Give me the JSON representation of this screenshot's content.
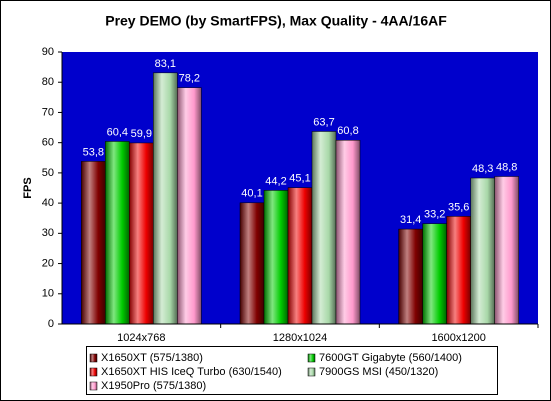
{
  "chart_data": {
    "type": "bar",
    "title": "Prey DEMO (by SmartFPS), Max Quality - 4AA/16AF",
    "y_label": "FPS",
    "categories": [
      "1024x768",
      "1280x1024",
      "1600x1200"
    ],
    "series": [
      {
        "name": "X1650XT (575/1380)",
        "color": "#800000",
        "values": [
          53.8,
          40.1,
          31.4
        ],
        "value_labels": [
          "53,8",
          "40,1",
          "31,4"
        ]
      },
      {
        "name": "7600GT Gigabyte (560/1400)",
        "color": "#00cc00",
        "values": [
          60.4,
          44.2,
          33.2
        ],
        "value_labels": [
          "60,4",
          "44,2",
          "33,2"
        ]
      },
      {
        "name": "X1650XT HIS IceQ Turbo (630/1540)",
        "color": "#ee0000",
        "values": [
          59.9,
          45.1,
          35.6
        ],
        "value_labels": [
          "59,9",
          "45,1",
          "35,6"
        ]
      },
      {
        "name": "7900GS MSI (450/1320)",
        "color": "#a8d8a8",
        "values": [
          83.1,
          63.7,
          48.3
        ],
        "value_labels": [
          "83,1",
          "63,7",
          "48,3"
        ]
      },
      {
        "name": "X1950Pro (575/1380)",
        "color": "#ff99cc",
        "values": [
          78.2,
          60.8,
          48.8
        ],
        "value_labels": [
          "78,2",
          "60,8",
          "48,8"
        ]
      }
    ],
    "ylim": [
      0,
      90
    ],
    "yticks": [
      0,
      10,
      20,
      30,
      40,
      50,
      60,
      70,
      80,
      90
    ]
  }
}
